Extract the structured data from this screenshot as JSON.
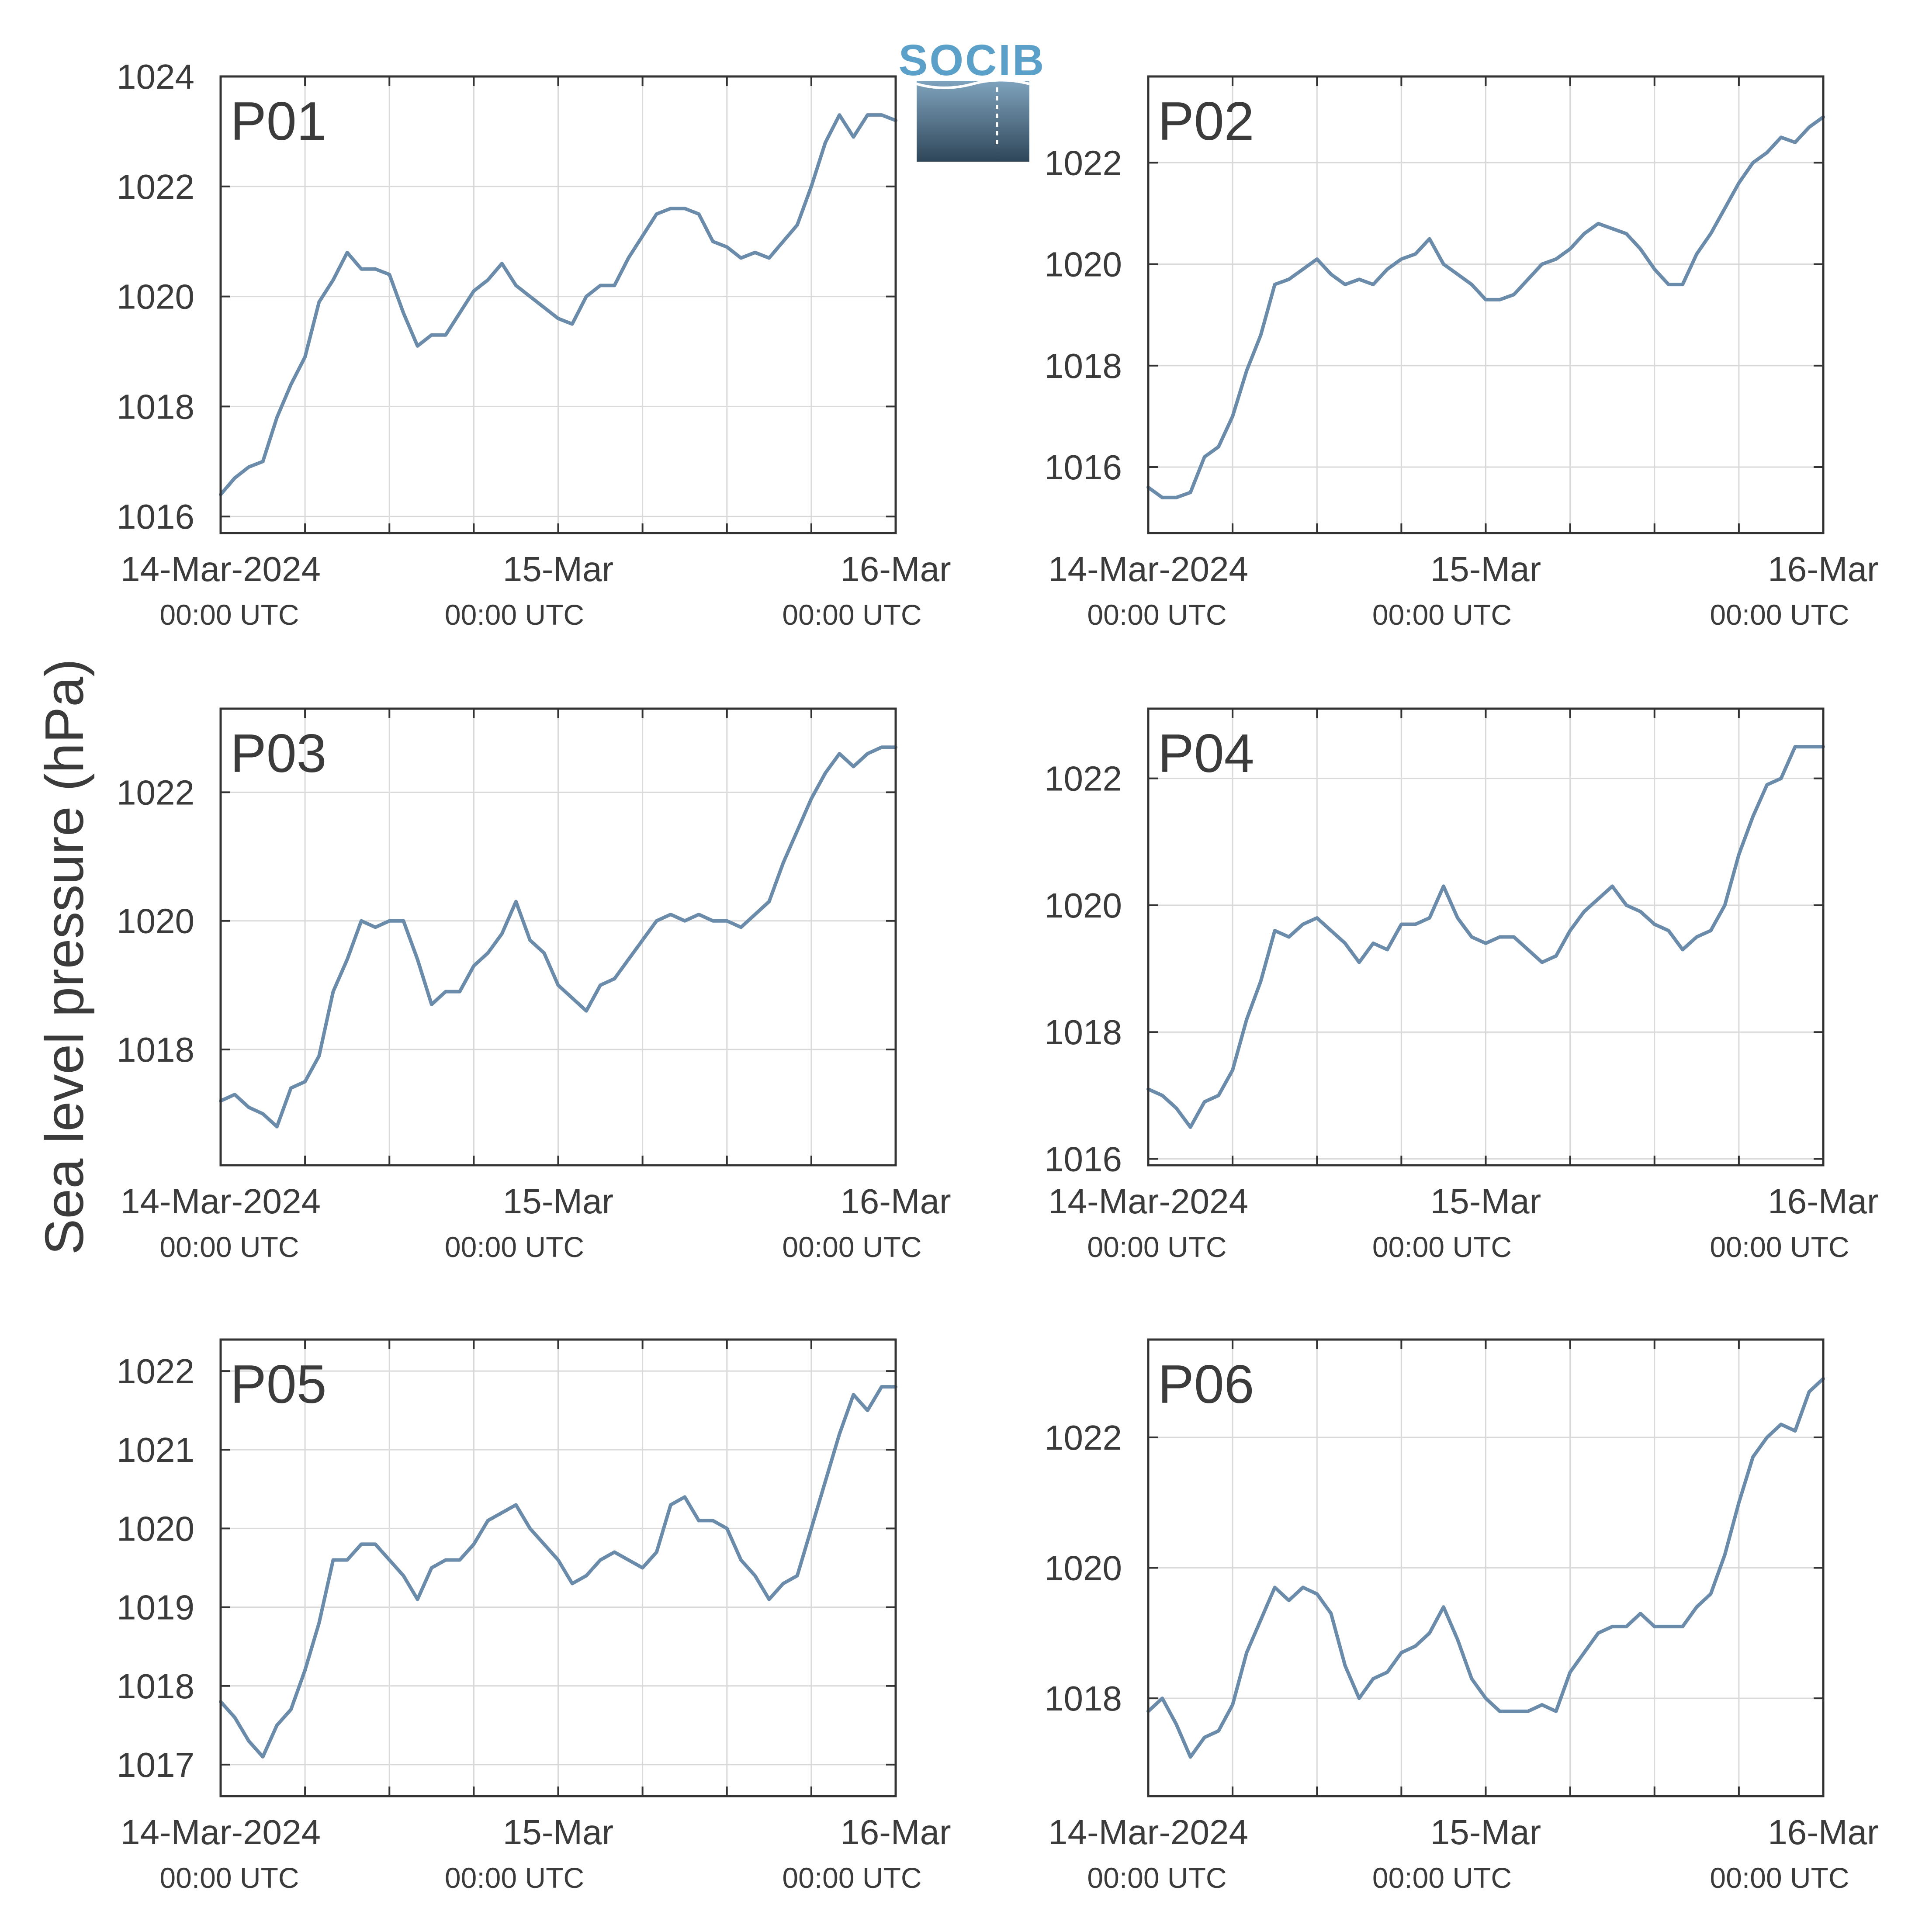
{
  "ylabel": "Sea level pressure (hPa)",
  "logo": {
    "text": "SOCIB",
    "colors": {
      "text": "#5aa0c8",
      "top": "#7fa3bd",
      "bottom": "#2f4659"
    }
  },
  "colors": {
    "line": "#6b8bab",
    "panel_label": "#e8141c",
    "axis": "#333333",
    "grid": "#d9d9d9",
    "text": "#3b3b3b"
  },
  "x_ticks": [
    {
      "label": "14-Mar-2024",
      "sub": "00:00 UTC"
    },
    {
      "label": "15-Mar",
      "sub": "00:00 UTC"
    },
    {
      "label": "16-Mar",
      "sub": "00:00 UTC"
    }
  ],
  "chart_data": [
    {
      "type": "line",
      "title": "P01",
      "xlim": [
        0,
        48
      ],
      "ylim": [
        1015.7,
        1024
      ],
      "yticks": [
        1016,
        1018,
        1020,
        1022,
        1024
      ],
      "x": [
        0,
        1,
        2,
        3,
        4,
        5,
        6,
        7,
        8,
        9,
        10,
        11,
        12,
        13,
        14,
        15,
        16,
        17,
        18,
        19,
        20,
        21,
        22,
        23,
        24,
        25,
        26,
        27,
        28,
        29,
        30,
        31,
        32,
        33,
        34,
        35,
        36,
        37,
        38,
        39,
        40,
        41,
        42,
        43,
        44,
        45,
        46,
        47,
        48
      ],
      "values": [
        1016.4,
        1016.7,
        1016.9,
        1017.0,
        1017.8,
        1018.4,
        1018.9,
        1019.9,
        1020.3,
        1020.8,
        1020.5,
        1020.5,
        1020.4,
        1019.7,
        1019.1,
        1019.3,
        1019.3,
        1019.7,
        1020.1,
        1020.3,
        1020.6,
        1020.2,
        1020.0,
        1019.8,
        1019.6,
        1019.5,
        1020.0,
        1020.2,
        1020.2,
        1020.7,
        1021.1,
        1021.5,
        1021.6,
        1021.6,
        1021.5,
        1021.0,
        1020.9,
        1020.7,
        1020.8,
        1020.7,
        1021.0,
        1021.3,
        1022.0,
        1022.8,
        1023.3,
        1022.9,
        1023.3,
        1023.3,
        1023.2
      ]
    },
    {
      "type": "line",
      "title": "P02",
      "xlim": [
        0,
        48
      ],
      "ylim": [
        1014.7,
        1023.7
      ],
      "yticks": [
        1016,
        1018,
        1020,
        1022
      ],
      "x": [
        0,
        1,
        2,
        3,
        4,
        5,
        6,
        7,
        8,
        9,
        10,
        11,
        12,
        13,
        14,
        15,
        16,
        17,
        18,
        19,
        20,
        21,
        22,
        23,
        24,
        25,
        26,
        27,
        28,
        29,
        30,
        31,
        32,
        33,
        34,
        35,
        36,
        37,
        38,
        39,
        40,
        41,
        42,
        43,
        44,
        45,
        46,
        47,
        48
      ],
      "values": [
        1015.6,
        1015.4,
        1015.4,
        1015.5,
        1016.2,
        1016.4,
        1017.0,
        1017.9,
        1018.6,
        1019.6,
        1019.7,
        1019.9,
        1020.1,
        1019.8,
        1019.6,
        1019.7,
        1019.6,
        1019.9,
        1020.1,
        1020.2,
        1020.5,
        1020.0,
        1019.8,
        1019.6,
        1019.3,
        1019.3,
        1019.4,
        1019.7,
        1020.0,
        1020.1,
        1020.3,
        1020.6,
        1020.8,
        1020.7,
        1020.6,
        1020.3,
        1019.9,
        1019.6,
        1019.6,
        1020.2,
        1020.6,
        1021.1,
        1021.6,
        1022.0,
        1022.2,
        1022.5,
        1022.4,
        1022.7,
        1022.9
      ]
    },
    {
      "type": "line",
      "title": "P03",
      "xlim": [
        0,
        48
      ],
      "ylim": [
        1016.2,
        1023.3
      ],
      "yticks": [
        1018,
        1020,
        1022
      ],
      "x": [
        0,
        1,
        2,
        3,
        4,
        5,
        6,
        7,
        8,
        9,
        10,
        11,
        12,
        13,
        14,
        15,
        16,
        17,
        18,
        19,
        20,
        21,
        22,
        23,
        24,
        25,
        26,
        27,
        28,
        29,
        30,
        31,
        32,
        33,
        34,
        35,
        36,
        37,
        38,
        39,
        40,
        41,
        42,
        43,
        44,
        45,
        46,
        47,
        48
      ],
      "values": [
        1017.2,
        1017.3,
        1017.1,
        1017.0,
        1016.8,
        1017.4,
        1017.5,
        1017.9,
        1018.9,
        1019.4,
        1020.0,
        1019.9,
        1020.0,
        1020.0,
        1019.4,
        1018.7,
        1018.9,
        1018.9,
        1019.3,
        1019.5,
        1019.8,
        1020.3,
        1019.7,
        1019.5,
        1019.0,
        1018.8,
        1018.6,
        1019.0,
        1019.1,
        1019.4,
        1019.7,
        1020.0,
        1020.1,
        1020.0,
        1020.1,
        1020.0,
        1020.0,
        1019.9,
        1020.1,
        1020.3,
        1020.9,
        1021.4,
        1021.9,
        1022.3,
        1022.6,
        1022.4,
        1022.6,
        1022.7,
        1022.7
      ]
    },
    {
      "type": "line",
      "title": "P04",
      "xlim": [
        0,
        48
      ],
      "ylim": [
        1015.9,
        1023.1
      ],
      "yticks": [
        1016,
        1018,
        1020,
        1022
      ],
      "x": [
        0,
        1,
        2,
        3,
        4,
        5,
        6,
        7,
        8,
        9,
        10,
        11,
        12,
        13,
        14,
        15,
        16,
        17,
        18,
        19,
        20,
        21,
        22,
        23,
        24,
        25,
        26,
        27,
        28,
        29,
        30,
        31,
        32,
        33,
        34,
        35,
        36,
        37,
        38,
        39,
        40,
        41,
        42,
        43,
        44,
        45,
        46,
        47,
        48
      ],
      "values": [
        1017.1,
        1017.0,
        1016.8,
        1016.5,
        1016.9,
        1017.0,
        1017.4,
        1018.2,
        1018.8,
        1019.6,
        1019.5,
        1019.7,
        1019.8,
        1019.6,
        1019.4,
        1019.1,
        1019.4,
        1019.3,
        1019.7,
        1019.7,
        1019.8,
        1020.3,
        1019.8,
        1019.5,
        1019.4,
        1019.5,
        1019.5,
        1019.3,
        1019.1,
        1019.2,
        1019.6,
        1019.9,
        1020.1,
        1020.3,
        1020.0,
        1019.9,
        1019.7,
        1019.6,
        1019.3,
        1019.5,
        1019.6,
        1020.0,
        1020.8,
        1021.4,
        1021.9,
        1022.0,
        1022.5,
        1022.5,
        1022.5
      ]
    },
    {
      "type": "line",
      "title": "P05",
      "xlim": [
        0,
        48
      ],
      "ylim": [
        1016.6,
        1022.4
      ],
      "yticks": [
        1017,
        1018,
        1019,
        1020,
        1021,
        1022
      ],
      "x": [
        0,
        1,
        2,
        3,
        4,
        5,
        6,
        7,
        8,
        9,
        10,
        11,
        12,
        13,
        14,
        15,
        16,
        17,
        18,
        19,
        20,
        21,
        22,
        23,
        24,
        25,
        26,
        27,
        28,
        29,
        30,
        31,
        32,
        33,
        34,
        35,
        36,
        37,
        38,
        39,
        40,
        41,
        42,
        43,
        44,
        45,
        46,
        47,
        48
      ],
      "values": [
        1017.8,
        1017.6,
        1017.3,
        1017.1,
        1017.5,
        1017.7,
        1018.2,
        1018.8,
        1019.6,
        1019.6,
        1019.8,
        1019.8,
        1019.6,
        1019.4,
        1019.1,
        1019.5,
        1019.6,
        1019.6,
        1019.8,
        1020.1,
        1020.2,
        1020.3,
        1020.0,
        1019.8,
        1019.6,
        1019.3,
        1019.4,
        1019.6,
        1019.7,
        1019.6,
        1019.5,
        1019.7,
        1020.3,
        1020.4,
        1020.1,
        1020.1,
        1020.0,
        1019.6,
        1019.4,
        1019.1,
        1019.3,
        1019.4,
        1020.0,
        1020.6,
        1021.2,
        1021.7,
        1021.5,
        1021.8,
        1021.8
      ]
    },
    {
      "type": "line",
      "title": "P06",
      "xlim": [
        0,
        48
      ],
      "ylim": [
        1016.5,
        1023.5
      ],
      "yticks": [
        1018,
        1020,
        1022
      ],
      "x": [
        0,
        1,
        2,
        3,
        4,
        5,
        6,
        7,
        8,
        9,
        10,
        11,
        12,
        13,
        14,
        15,
        16,
        17,
        18,
        19,
        20,
        21,
        22,
        23,
        24,
        25,
        26,
        27,
        28,
        29,
        30,
        31,
        32,
        33,
        34,
        35,
        36,
        37,
        38,
        39,
        40,
        41,
        42,
        43,
        44,
        45,
        46,
        47,
        48
      ],
      "values": [
        1017.8,
        1018.0,
        1017.6,
        1017.1,
        1017.4,
        1017.5,
        1017.9,
        1018.7,
        1019.2,
        1019.7,
        1019.5,
        1019.7,
        1019.6,
        1019.3,
        1018.5,
        1018.0,
        1018.3,
        1018.4,
        1018.7,
        1018.8,
        1019.0,
        1019.4,
        1018.9,
        1018.3,
        1018.0,
        1017.8,
        1017.8,
        1017.8,
        1017.9,
        1017.8,
        1018.4,
        1018.7,
        1019.0,
        1019.1,
        1019.1,
        1019.3,
        1019.1,
        1019.1,
        1019.1,
        1019.4,
        1019.6,
        1020.2,
        1021.0,
        1021.7,
        1022.0,
        1022.2,
        1022.1,
        1022.7,
        1022.9
      ]
    }
  ]
}
